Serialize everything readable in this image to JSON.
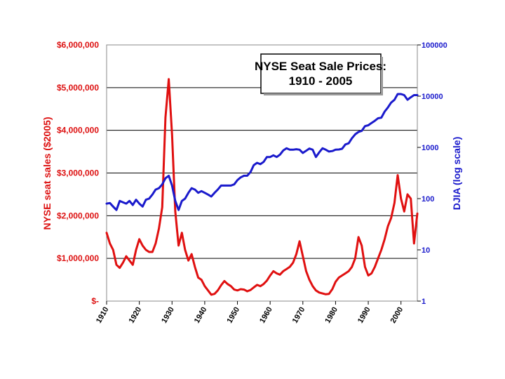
{
  "chart_data": {
    "type": "line",
    "title_lines": [
      "NYSE Seat Sale Prices:",
      "1910 - 2005"
    ],
    "xlim": [
      1910,
      2005
    ],
    "x_ticks": [
      1910,
      1920,
      1930,
      1940,
      1950,
      1960,
      1970,
      1980,
      1990,
      2000
    ],
    "left_axis": {
      "label": "NYSE seat sales ($2005)",
      "ylim": [
        0,
        6000000
      ],
      "ticks": [
        {
          "value": 0,
          "label": "$-"
        },
        {
          "value": 1000000,
          "label": "$1,000,000"
        },
        {
          "value": 2000000,
          "label": "$2,000,000"
        },
        {
          "value": 3000000,
          "label": "$3,000,000"
        },
        {
          "value": 4000000,
          "label": "$4,000,000"
        },
        {
          "value": 5000000,
          "label": "$5,000,000"
        },
        {
          "value": 6000000,
          "label": "$6,000,000"
        }
      ],
      "color": "#dd1111"
    },
    "right_axis": {
      "label": "DJIA (log scale)",
      "scale": "log",
      "ylim": [
        1,
        100000
      ],
      "ticks": [
        {
          "value": 1,
          "label": "1"
        },
        {
          "value": 10,
          "label": "10"
        },
        {
          "value": 100,
          "label": "100"
        },
        {
          "value": 1000,
          "label": "1000"
        },
        {
          "value": 10000,
          "label": "10000"
        },
        {
          "value": 100000,
          "label": "100000"
        }
      ],
      "color": "#1a1acc"
    },
    "grid": "horizontal",
    "series": [
      {
        "axis": "left",
        "color": "#e01010",
        "x": [
          1910,
          1911,
          1912,
          1913,
          1914,
          1915,
          1916,
          1917,
          1918,
          1919,
          1920,
          1921,
          1922,
          1923,
          1924,
          1925,
          1926,
          1927,
          1928,
          1929,
          1930,
          1931,
          1932,
          1933,
          1934,
          1935,
          1936,
          1937,
          1938,
          1939,
          1940,
          1941,
          1942,
          1943,
          1944,
          1945,
          1946,
          1947,
          1948,
          1949,
          1950,
          1951,
          1952,
          1953,
          1954,
          1955,
          1956,
          1957,
          1958,
          1959,
          1960,
          1961,
          1962,
          1963,
          1964,
          1965,
          1966,
          1967,
          1968,
          1969,
          1970,
          1971,
          1972,
          1973,
          1974,
          1975,
          1976,
          1977,
          1978,
          1979,
          1980,
          1981,
          1982,
          1983,
          1984,
          1985,
          1986,
          1987,
          1988,
          1989,
          1990,
          1991,
          1992,
          1993,
          1994,
          1995,
          1996,
          1997,
          1998,
          1999,
          2000,
          2001,
          2002,
          2003,
          2004,
          2005
        ],
        "y": [
          1600000,
          1350000,
          1200000,
          850000,
          780000,
          900000,
          1050000,
          950000,
          850000,
          1200000,
          1450000,
          1300000,
          1200000,
          1150000,
          1150000,
          1350000,
          1700000,
          2200000,
          4300000,
          5200000,
          3900000,
          2100000,
          1300000,
          1600000,
          1200000,
          950000,
          1100000,
          800000,
          550000,
          500000,
          350000,
          250000,
          150000,
          170000,
          250000,
          370000,
          470000,
          400000,
          350000,
          270000,
          250000,
          280000,
          270000,
          230000,
          260000,
          320000,
          380000,
          350000,
          400000,
          480000,
          600000,
          700000,
          650000,
          620000,
          700000,
          750000,
          800000,
          900000,
          1100000,
          1400000,
          1050000,
          700000,
          500000,
          350000,
          250000,
          200000,
          180000,
          160000,
          170000,
          280000,
          450000,
          550000,
          600000,
          650000,
          700000,
          800000,
          1000000,
          1500000,
          1300000,
          800000,
          600000,
          650000,
          800000,
          1000000,
          1200000,
          1450000,
          1750000,
          1950000,
          2300000,
          2950000,
          2400000,
          2100000,
          2500000,
          2400000,
          1350000,
          2050000
        ]
      },
      {
        "axis": "right",
        "scale": "log",
        "color": "#1a1acc",
        "x": [
          1910,
          1911,
          1912,
          1913,
          1914,
          1915,
          1916,
          1917,
          1918,
          1919,
          1920,
          1921,
          1922,
          1923,
          1924,
          1925,
          1926,
          1927,
          1928,
          1929,
          1930,
          1931,
          1932,
          1933,
          1934,
          1935,
          1936,
          1937,
          1938,
          1939,
          1940,
          1941,
          1942,
          1943,
          1944,
          1945,
          1946,
          1947,
          1948,
          1949,
          1950,
          1951,
          1952,
          1953,
          1954,
          1955,
          1956,
          1957,
          1958,
          1959,
          1960,
          1961,
          1962,
          1963,
          1964,
          1965,
          1966,
          1967,
          1968,
          1969,
          1970,
          1971,
          1972,
          1973,
          1974,
          1975,
          1976,
          1977,
          1978,
          1979,
          1980,
          1981,
          1982,
          1983,
          1984,
          1985,
          1986,
          1987,
          1988,
          1989,
          1990,
          1991,
          1992,
          1993,
          1994,
          1995,
          1996,
          1997,
          1998,
          1999,
          2000,
          2001,
          2002,
          2003,
          2004,
          2005
        ],
        "y": [
          80,
          82,
          70,
          60,
          90,
          85,
          80,
          90,
          75,
          95,
          80,
          70,
          95,
          100,
          120,
          150,
          160,
          190,
          250,
          280,
          180,
          90,
          60,
          90,
          100,
          130,
          160,
          150,
          130,
          140,
          130,
          120,
          110,
          130,
          150,
          180,
          180,
          180,
          180,
          190,
          230,
          260,
          280,
          280,
          330,
          450,
          500,
          470,
          520,
          650,
          650,
          700,
          650,
          720,
          870,
          960,
          900,
          900,
          920,
          900,
          780,
          860,
          950,
          900,
          650,
          800,
          960,
          900,
          830,
          850,
          900,
          910,
          940,
          1140,
          1200,
          1500,
          1800,
          2000,
          2100,
          2600,
          2700,
          3000,
          3300,
          3700,
          3800,
          5000,
          6000,
          7500,
          8500,
          11000,
          11000,
          10500,
          8500,
          9500,
          10500,
          10500
        ]
      }
    ]
  }
}
